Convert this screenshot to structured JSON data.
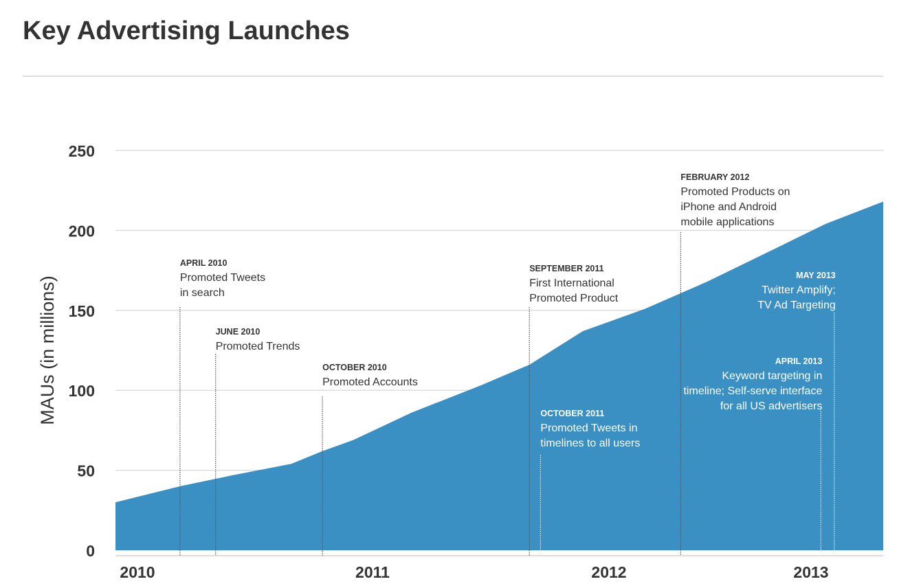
{
  "chart_data": {
    "type": "area",
    "title": "Key Advertising Launches",
    "xlabel": "",
    "ylabel": "MAUs (in millions)",
    "ylim": [
      0,
      250
    ],
    "xlim": [
      2009.9,
      2013.35
    ],
    "y_ticks": [
      "0",
      "50",
      "100",
      "150",
      "200",
      "250"
    ],
    "y_tick_values": [
      0,
      50,
      100,
      150,
      200,
      250
    ],
    "x_tick_labels": [
      "2010",
      "2011",
      "2012",
      "2013"
    ],
    "x_tick_values": [
      2010,
      2011,
      2012,
      2013
    ],
    "grid": true,
    "fill_color": "#3a8fc3",
    "series": [
      {
        "name": "MAUs",
        "x": [
          2009.9,
          2010.19,
          2010.43,
          2010.69,
          2010.83,
          2010.97,
          2011.23,
          2011.54,
          2011.76,
          2012.0,
          2012.28,
          2012.56,
          2012.87,
          2013.09,
          2013.35
        ],
        "values": [
          30,
          40,
          47,
          54,
          62,
          69,
          86,
          103,
          116,
          137,
          151,
          168,
          189,
          204,
          218
        ]
      }
    ],
    "annotations": [
      {
        "date": "APRIL 2010",
        "lines": [
          "Promoted Tweets",
          "in search"
        ],
        "x": 2010.19
      },
      {
        "date": "JUNE 2010",
        "lines": [
          "Promoted Trends"
        ],
        "x": 2010.35
      },
      {
        "date": "OCTOBER 2010",
        "lines": [
          "Promoted Accounts"
        ],
        "x": 2010.83
      },
      {
        "date": "SEPTEMBER 2011",
        "lines": [
          "First International",
          "Promoted Product"
        ],
        "x": 2011.76
      },
      {
        "date": "OCTOBER 2011",
        "lines": [
          "Promoted Tweets in",
          "timelines to all users"
        ],
        "x": 2011.81
      },
      {
        "date": "FEBRUARY 2012",
        "lines": [
          "Promoted Products on",
          "iPhone and Android",
          "mobile applications"
        ],
        "x": 2012.44
      },
      {
        "date": "APRIL 2013",
        "lines": [
          "Keyword targeting in",
          "timeline; Self-serve interface",
          "for all US advertisers"
        ],
        "x": 2013.07
      },
      {
        "date": "MAY 2013",
        "lines": [
          "Twitter Amplify;",
          "TV Ad Targeting"
        ],
        "x": 2013.13
      }
    ]
  }
}
